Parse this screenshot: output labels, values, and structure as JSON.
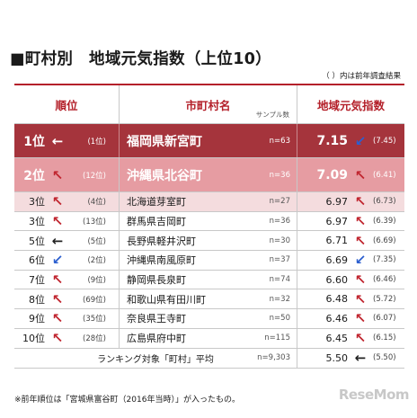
{
  "title": "■町村別　地域元気指数（上位10）",
  "note": "（ ）内は前年調査結果",
  "headers": {
    "rank": "順位",
    "name": "市町村名",
    "sample": "サンプル数",
    "score": "地域元気指数"
  },
  "rows": [
    {
      "rank": "1位",
      "arrow": "←",
      "trend": "same",
      "prev_rank": "(1位)",
      "name": "福岡県新宮町",
      "n": "n=63",
      "score": "7.15",
      "score_arrow": "↙",
      "score_trend": "down",
      "prev_score": "(7.45)"
    },
    {
      "rank": "2位",
      "arrow": "↖",
      "trend": "up",
      "prev_rank": "(12位)",
      "name": "沖縄県北谷町",
      "n": "n=36",
      "score": "7.09",
      "score_arrow": "↖",
      "score_trend": "up",
      "prev_score": "(6.41)"
    },
    {
      "rank": "3位",
      "arrow": "↖",
      "trend": "up",
      "prev_rank": "(4位)",
      "name": "北海道芽室町",
      "n": "n=27",
      "score": "6.97",
      "score_arrow": "↖",
      "score_trend": "up",
      "prev_score": "(6.73)"
    },
    {
      "rank": "3位",
      "arrow": "↖",
      "trend": "up",
      "prev_rank": "(13位)",
      "name": "群馬県吉岡町",
      "n": "n=36",
      "score": "6.97",
      "score_arrow": "↖",
      "score_trend": "up",
      "prev_score": "(6.39)"
    },
    {
      "rank": "5位",
      "arrow": "←",
      "trend": "same",
      "prev_rank": "(5位)",
      "name": "長野県軽井沢町",
      "n": "n=30",
      "score": "6.71",
      "score_arrow": "↖",
      "score_trend": "up",
      "prev_score": "(6.69)"
    },
    {
      "rank": "6位",
      "arrow": "↙",
      "trend": "down",
      "prev_rank": "(2位)",
      "name": "沖縄県南風原町",
      "n": "n=37",
      "score": "6.69",
      "score_arrow": "↙",
      "score_trend": "down",
      "prev_score": "(7.35)"
    },
    {
      "rank": "7位",
      "arrow": "↖",
      "trend": "up",
      "prev_rank": "(9位)",
      "name": "静岡県長泉町",
      "n": "n=74",
      "score": "6.60",
      "score_arrow": "↖",
      "score_trend": "up",
      "prev_score": "(6.46)"
    },
    {
      "rank": "8位",
      "arrow": "↖",
      "trend": "up",
      "prev_rank": "(69位)",
      "name": "和歌山県有田川町",
      "n": "n=32",
      "score": "6.48",
      "score_arrow": "↖",
      "score_trend": "up",
      "prev_score": "(5.72)"
    },
    {
      "rank": "9位",
      "arrow": "↖",
      "trend": "up",
      "prev_rank": "(35位)",
      "name": "奈良県王寺町",
      "n": "n=50",
      "score": "6.46",
      "score_arrow": "↖",
      "score_trend": "up",
      "prev_score": "(6.07)"
    },
    {
      "rank": "10位",
      "arrow": "↖",
      "trend": "up",
      "prev_rank": "(28位)",
      "name": "広島県府中町",
      "n": "n=115",
      "score": "6.45",
      "score_arrow": "↖",
      "score_trend": "up",
      "prev_score": "(6.15)"
    }
  ],
  "footer_row": {
    "label": "ランキング対象「町村」平均",
    "n": "n=9,303",
    "score": "5.50",
    "score_arrow": "←",
    "prev_score": "(5.50)"
  },
  "footnote": "※前年順位は「宮城県富谷町（2016年当時）」が入ったもの。",
  "logo": "ReseMom",
  "colors": {
    "accent": "#b4202a",
    "first_row": "#a5343c",
    "second_row": "#e69ca2",
    "third_band": "#f4dcde",
    "up_arrow": "#c0252f",
    "down_arrow": "#2c5fcf"
  }
}
